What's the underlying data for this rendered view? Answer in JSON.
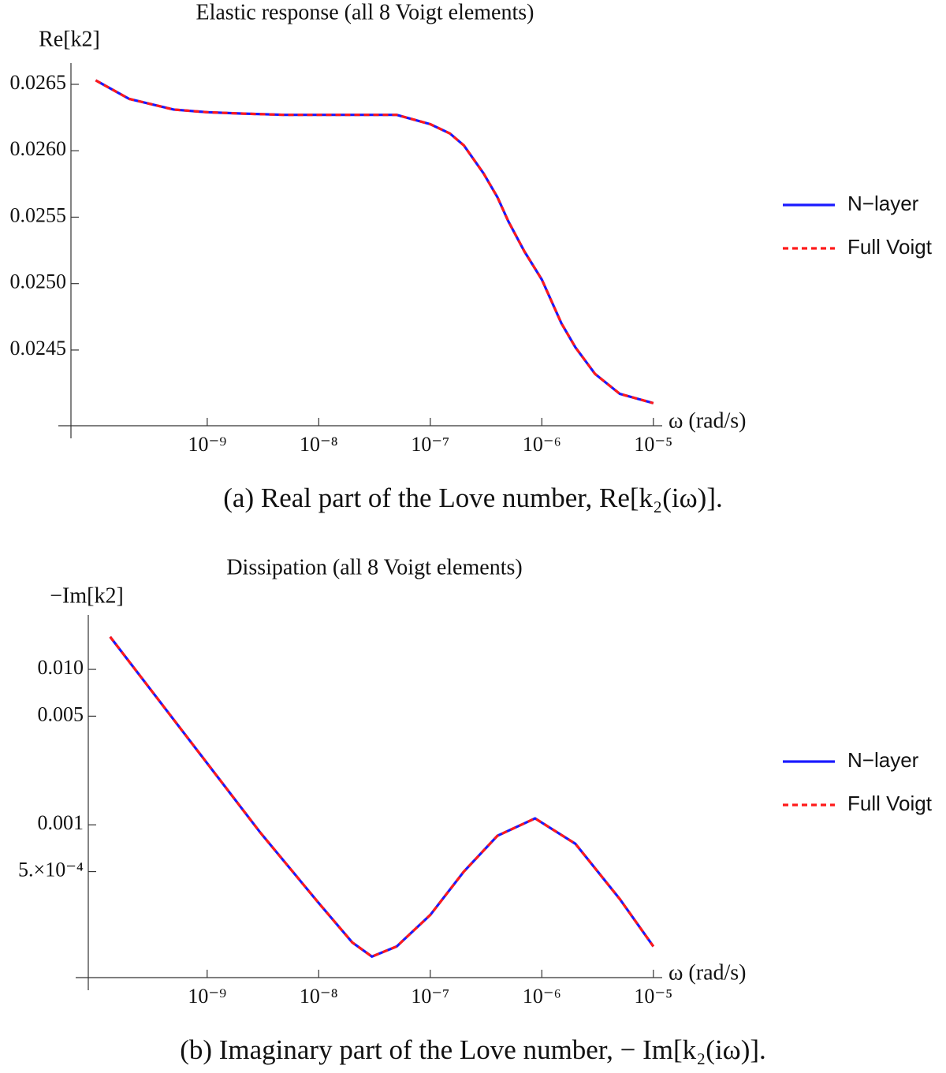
{
  "chart_data": [
    {
      "type": "line",
      "title": "Elastic response (all 8 Voigt elements)",
      "y_label": "Re[k2]",
      "x_label": "ω (rad/s)",
      "caption": "(a) Real part of the Love number, Re[k₂(iω)].",
      "x_scale": "log",
      "y_scale": "linear",
      "x": [
        1e-10,
        2e-10,
        5e-10,
        1e-09,
        2e-09,
        5e-09,
        1e-08,
        2e-08,
        5e-08,
        1e-07,
        1.5e-07,
        2e-07,
        3e-07,
        4e-07,
        5e-07,
        7e-07,
        1e-06,
        1.5e-06,
        2e-06,
        3e-06,
        5e-06,
        1e-05
      ],
      "series": [
        {
          "name": "N−layer",
          "color": "#1a1aff",
          "dashed": false,
          "values": [
            0.02653,
            0.02639,
            0.02631,
            0.02629,
            0.02628,
            0.02627,
            0.02627,
            0.02627,
            0.02627,
            0.0262,
            0.02613,
            0.02604,
            0.02583,
            0.02565,
            0.02547,
            0.02524,
            0.02503,
            0.0247,
            0.02452,
            0.02432,
            0.02417,
            0.0241
          ]
        },
        {
          "name": "Full Voigt",
          "color": "#ff1a1a",
          "dashed": true,
          "values": [
            0.02653,
            0.02639,
            0.02631,
            0.02629,
            0.02628,
            0.02627,
            0.02627,
            0.02627,
            0.02627,
            0.0262,
            0.02613,
            0.02604,
            0.02583,
            0.02565,
            0.02547,
            0.02524,
            0.02503,
            0.0247,
            0.02452,
            0.02432,
            0.02417,
            0.0241
          ]
        }
      ],
      "xlim": [
        6e-11,
        1.2e-05
      ],
      "xticks": [
        {
          "value": 1e-09,
          "label": "10⁻⁹"
        },
        {
          "value": 1e-08,
          "label": "10⁻⁸"
        },
        {
          "value": 1e-07,
          "label": "10⁻⁷"
        },
        {
          "value": 1e-06,
          "label": "10⁻⁶"
        },
        {
          "value": 1e-05,
          "label": "10⁻⁵"
        }
      ],
      "ylim": [
        0.02393,
        0.02666
      ],
      "yticks": [
        0.0265,
        {
          "value": 0.026,
          "label": "0.0260"
        },
        0.0255,
        {
          "value": 0.025,
          "label": "0.0250"
        },
        0.0245
      ],
      "legend": "right"
    },
    {
      "type": "line",
      "title": "Dissipation (all 8 Voigt elements)",
      "y_label": "−Im[k2]",
      "x_label": "ω (rad/s)",
      "caption": "(b) Imaginary part of the Love number, − Im[k₂(iω)].",
      "x_scale": "log",
      "y_scale": "log",
      "x": [
        1.35e-10,
        1e-09,
        3e-09,
        1e-08,
        2e-08,
        3e-08,
        5e-08,
        1e-07,
        2e-07,
        4e-07,
        8.7e-07,
        2e-06,
        5e-06,
        1e-05
      ],
      "series": [
        {
          "name": "N−layer",
          "color": "#1a1aff",
          "dashed": false,
          "values": [
            0.0162,
            0.00249,
            0.00089,
            0.000314,
            0.000175,
            0.000142,
            0.000165,
            0.000263,
            0.0005,
            0.00085,
            0.0011,
            0.000755,
            0.000333,
            0.000165
          ]
        },
        {
          "name": "Full Voigt",
          "color": "#ff1a1a",
          "dashed": true,
          "values": [
            0.0162,
            0.00249,
            0.00089,
            0.000314,
            0.000175,
            0.000142,
            0.000165,
            0.000263,
            0.0005,
            0.00085,
            0.0011,
            0.000755,
            0.000333,
            0.000165
          ]
        }
      ],
      "xlim": [
        8.6e-11,
        1.2e-05
      ],
      "xticks": [
        {
          "value": 1e-09,
          "label": "10⁻⁹"
        },
        {
          "value": 1e-08,
          "label": "10⁻⁸"
        },
        {
          "value": 1e-07,
          "label": "10⁻⁷"
        },
        {
          "value": 1e-06,
          "label": "10⁻⁶"
        },
        {
          "value": 1e-05,
          "label": "10⁻⁵"
        }
      ],
      "ylim": [
        0.000104,
        0.0224
      ],
      "yticks": [
        {
          "value": 0.01,
          "label": "0.010"
        },
        0.005,
        0.001,
        {
          "value": 0.0005,
          "label": "5.×10⁻⁴"
        }
      ],
      "legend": "right"
    }
  ]
}
